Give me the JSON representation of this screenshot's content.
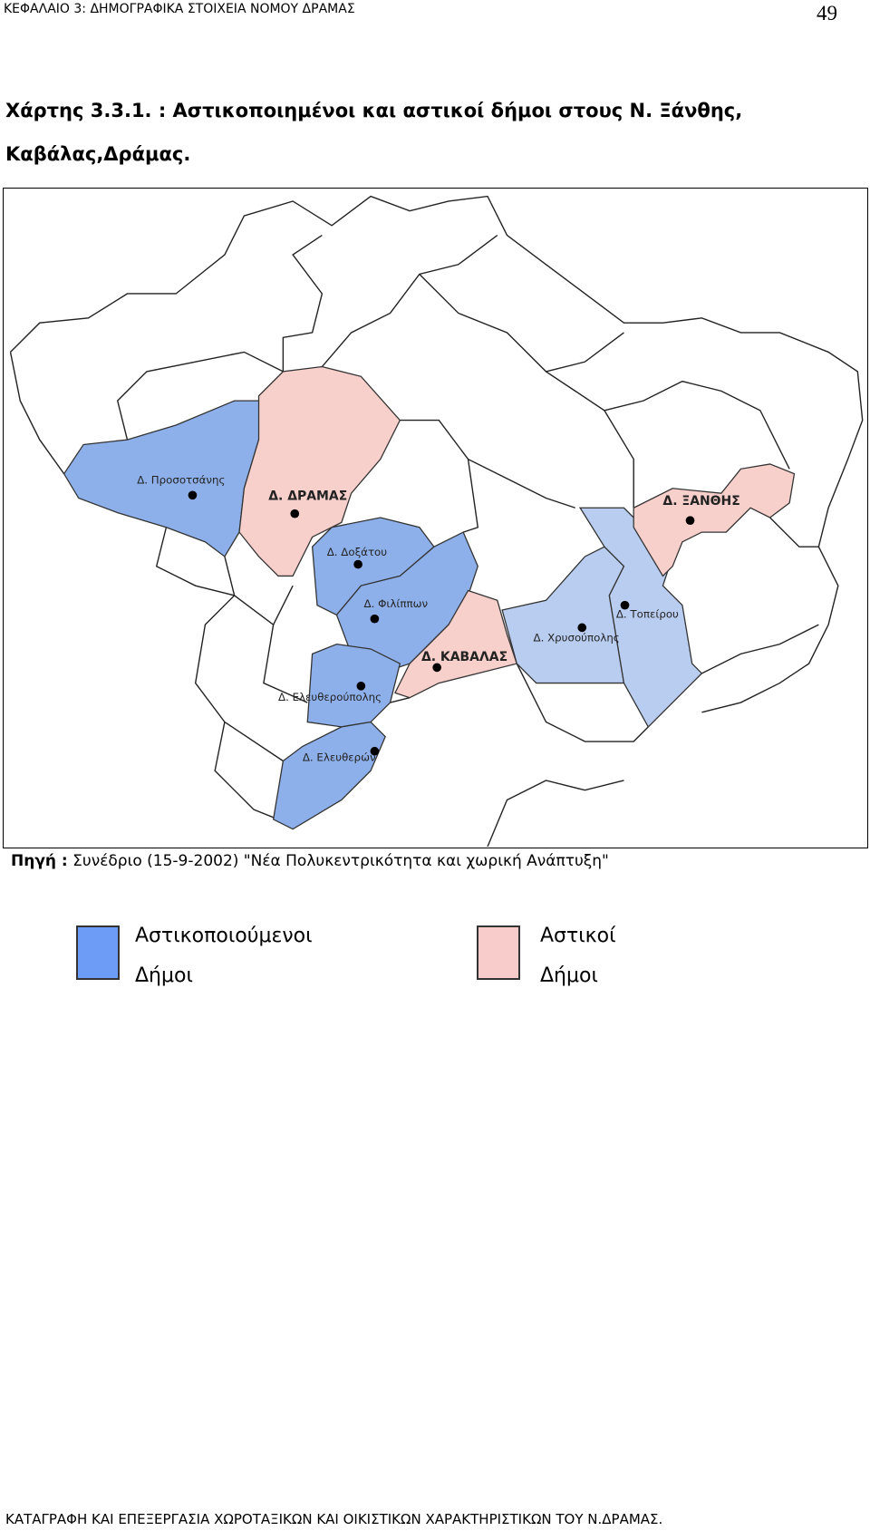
{
  "header": {
    "chapter": "ΚΕΦΑΛΑΙΟ 3: ΔΗΜΟΓΡΑΦΙΚΑ ΣΤΟΙΧΕΙΑ ΝΟΜΟΥ ΔΡΑΜΑΣ",
    "page_number": "49"
  },
  "figure": {
    "title_lines": [
      "Χάρτης 3.3.1. : Αστικοποιημένοι και αστικοί δήμοι στους Ν. Ξάνθης,",
      "Καβάλας,Δράμας."
    ],
    "map_labels": [
      "Δ. Προσοτσάνης",
      "Δ. ΔΡΑΜΑΣ",
      "Δ. Δοξάτου",
      "Δ. Φιλίππων",
      "Δ. ΚΑΒΑΛΑΣ",
      "Δ. Ελευθερούπολης",
      "Δ. Ελευθερών",
      "Δ. Χρυσούπολης",
      "Δ. Τοπείρου",
      "Δ. ΞΑΝΘΗΣ"
    ],
    "source_label": "Πηγή :",
    "source_text": "Συνέδριο (15-9-2002) \"Νέα Πολυκεντρικότητα και χωρική Ανάπτυξη\""
  },
  "legend": [
    {
      "lines": [
        "Αστικοποιούμενοι",
        "Δήμοι"
      ],
      "color": "#6d9cf6"
    },
    {
      "lines": [
        "Αστικοί",
        "Δήμοι"
      ],
      "color": "#f9cccc"
    }
  ],
  "footer": "ΚΑΤΑΓΡΑΦΗ ΚΑΙ ΕΠΕΞΕΡΓΑΣΙΑ ΧΩΡΟΤΑΞΙΚΩΝ ΚΑΙ ΟΙΚΙΣΤΙΚΩΝ ΧΑΡΑΚΤΗΡΙΣΤΙΚΩΝ ΤΟΥ Ν.ΔΡΑΜΑΣ."
}
